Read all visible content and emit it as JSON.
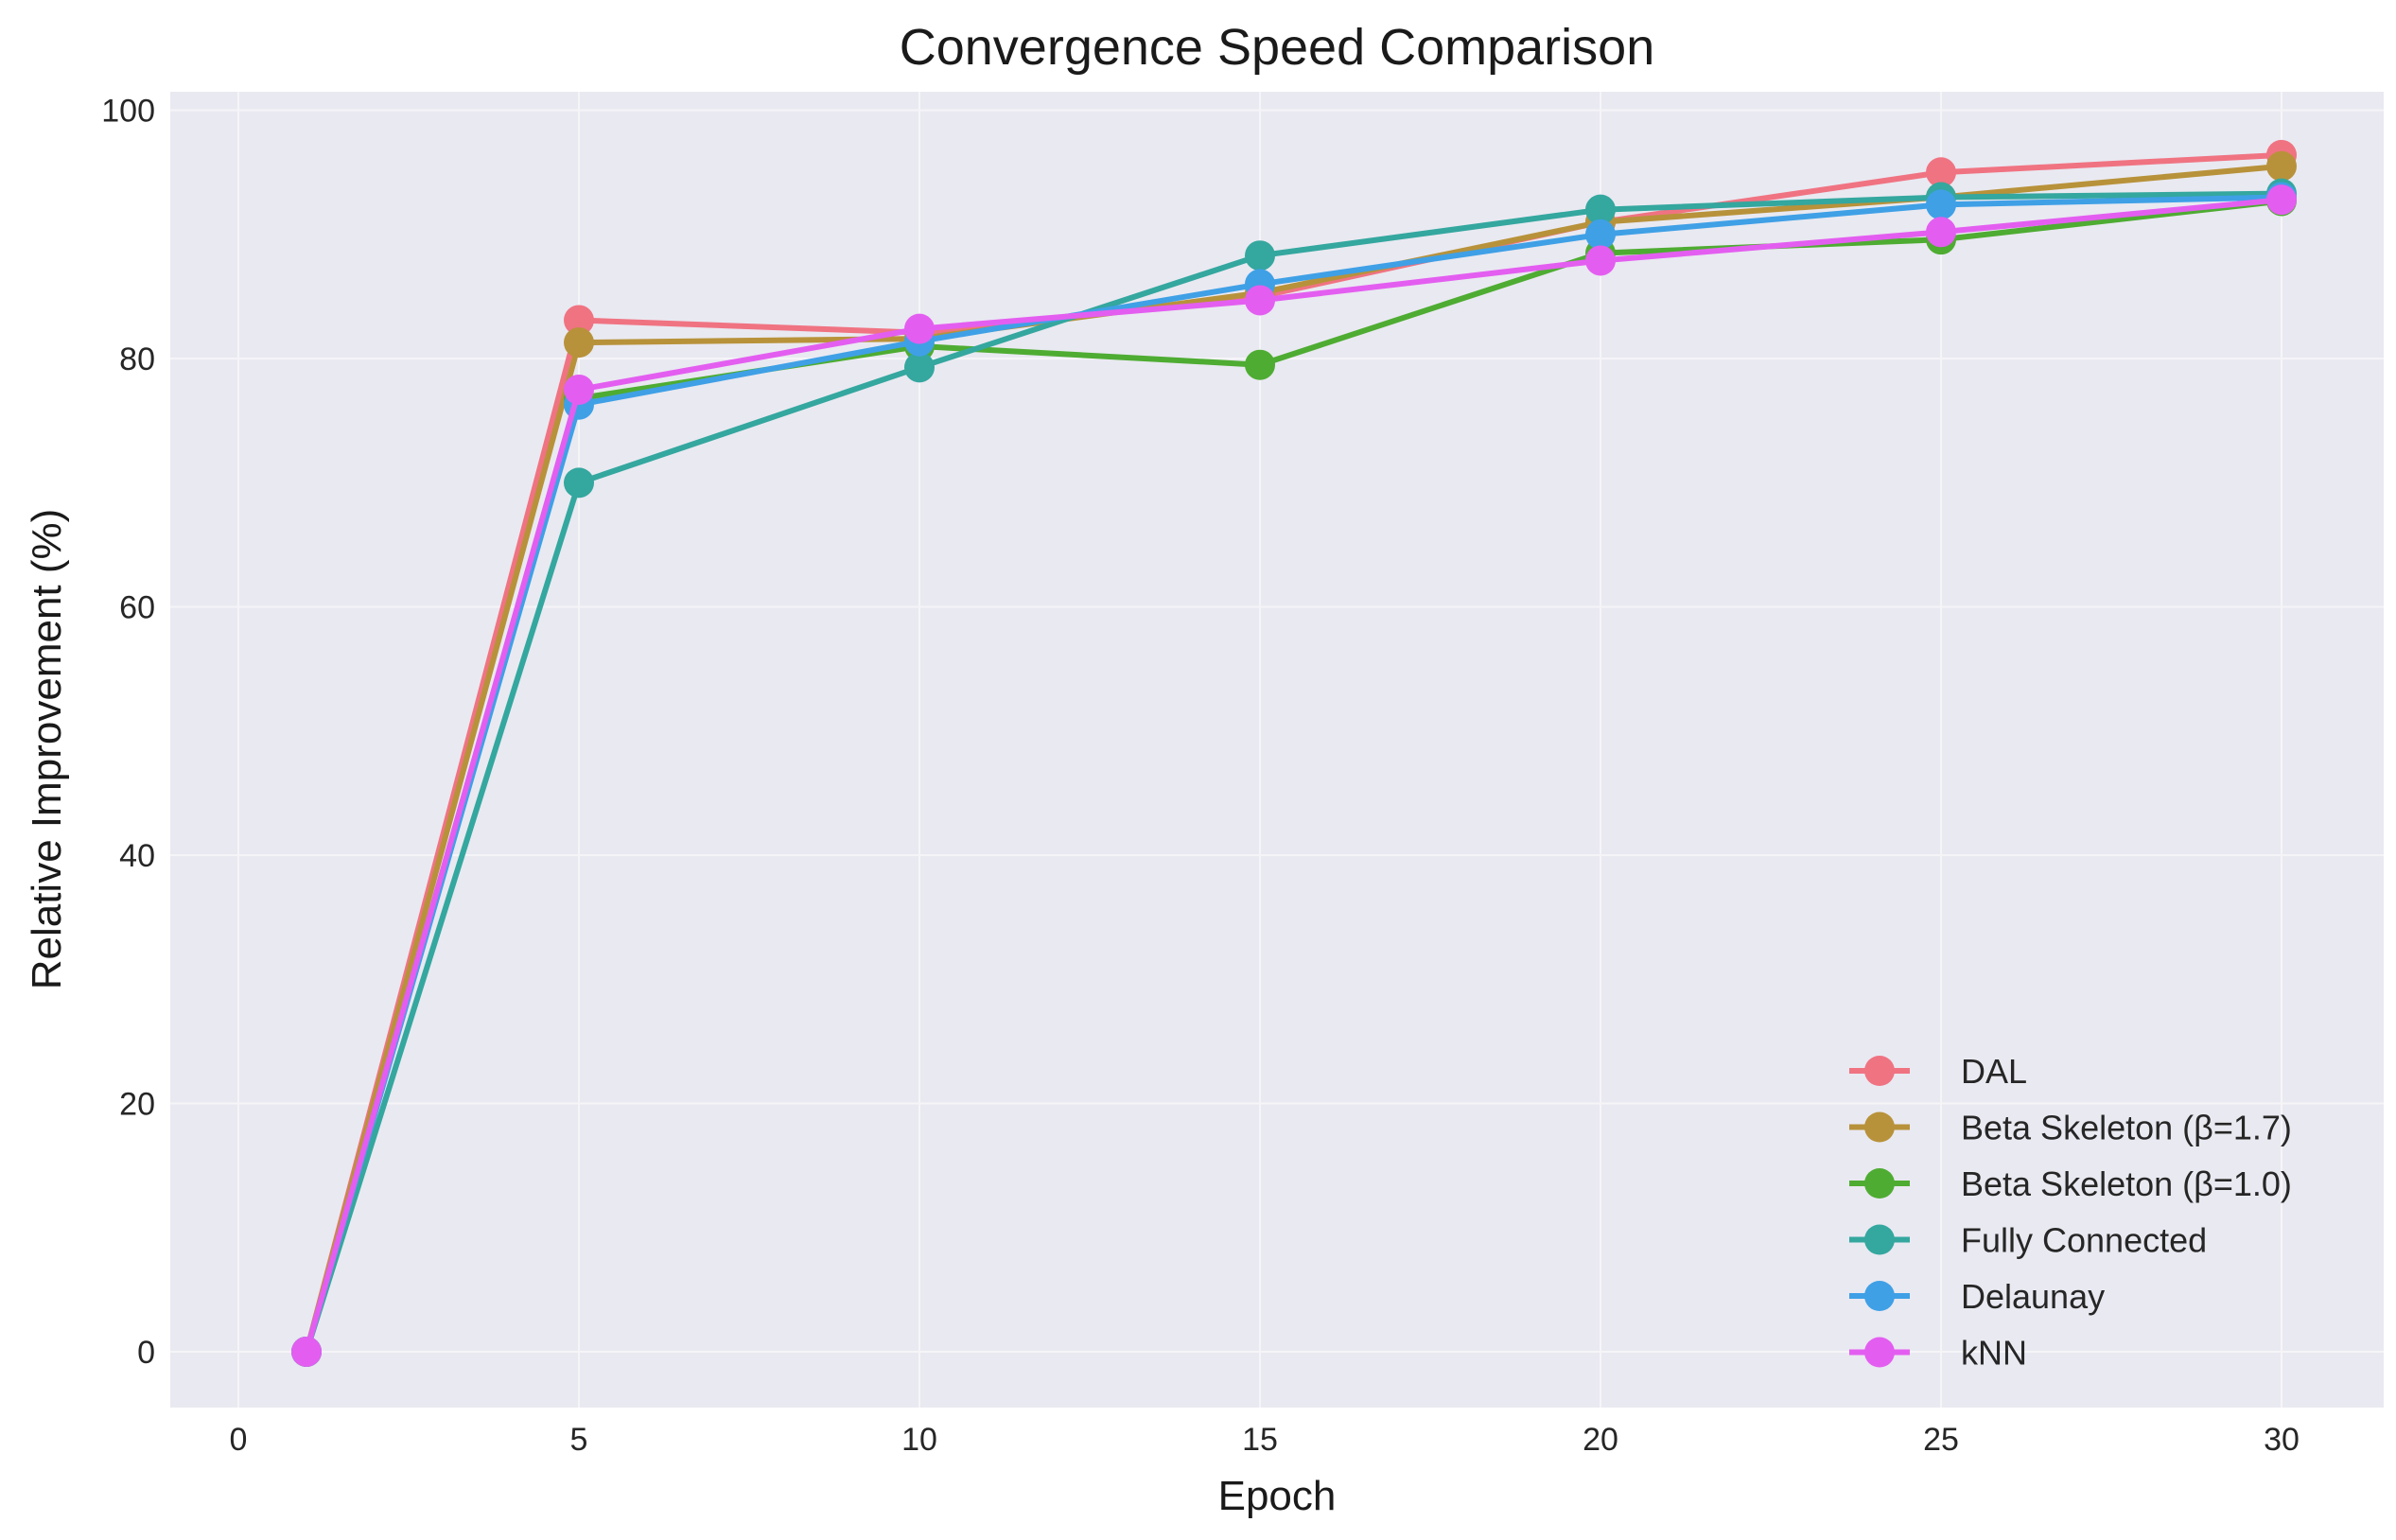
{
  "chart_data": {
    "type": "line",
    "title": "Convergence Speed Comparison",
    "xlabel": "Epoch",
    "ylabel": "Relative Improvement (%)",
    "xlim": [
      -1,
      31.5
    ],
    "ylim": [
      -4.5,
      101.5
    ],
    "xticks": [
      0,
      5,
      10,
      15,
      20,
      25,
      30
    ],
    "yticks": [
      0,
      20,
      40,
      60,
      80,
      100
    ],
    "grid": true,
    "legend_position": "lower-right",
    "x": [
      1,
      5,
      10,
      15,
      20,
      25,
      30
    ],
    "series": [
      {
        "name": "DAL",
        "color": "#f07382",
        "values": [
          0,
          83.1,
          82.1,
          85.0,
          91.0,
          95.0,
          96.4
        ]
      },
      {
        "name": "Beta Skeleton (β=1.7)",
        "color": "#b8923a",
        "values": [
          0,
          81.3,
          81.6,
          85.3,
          91.0,
          93.0,
          95.5
        ]
      },
      {
        "name": "Beta Skeleton (β=1.0)",
        "color": "#4eac32",
        "values": [
          0,
          76.8,
          81.0,
          79.5,
          88.5,
          89.6,
          92.7
        ]
      },
      {
        "name": "Fully Connected",
        "color": "#34a79f",
        "values": [
          0,
          70.0,
          79.3,
          88.3,
          92.0,
          93.0,
          93.3
        ]
      },
      {
        "name": "Delaunay",
        "color": "#3fa0e6",
        "values": [
          0,
          76.3,
          81.4,
          86.0,
          90.0,
          92.4,
          93.0
        ]
      },
      {
        "name": "kNN",
        "color": "#e35ef0",
        "values": [
          0,
          77.5,
          82.4,
          84.7,
          87.9,
          90.2,
          92.8
        ]
      }
    ]
  },
  "colors": {
    "plot_background": "#e9e9f1",
    "grid": "#f5f5f8"
  }
}
